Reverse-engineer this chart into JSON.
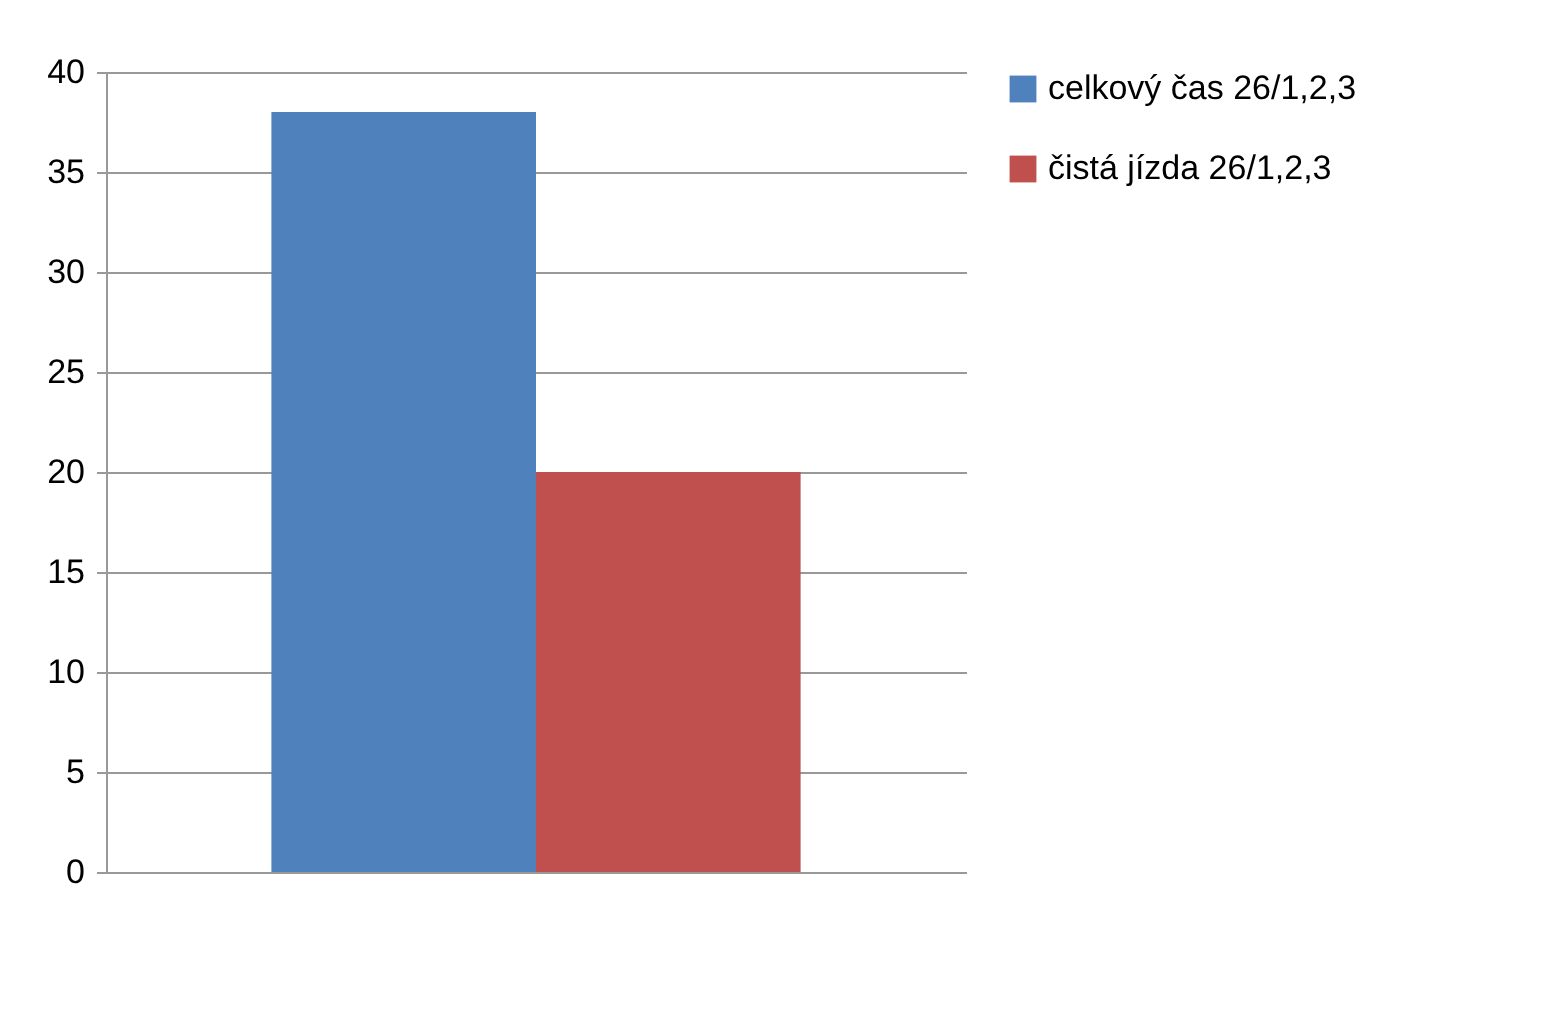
{
  "chart_data": {
    "type": "bar",
    "categories": [
      null
    ],
    "series": [
      {
        "name": "celkový čas 26/1,2,3",
        "color": "#4f81bd",
        "values": [
          38
        ]
      },
      {
        "name": "čistá jízda 26/1,2,3",
        "color": "#c0504d",
        "values": [
          20
        ]
      }
    ],
    "ylim": [
      0,
      40
    ],
    "yticks": [
      0,
      5,
      10,
      15,
      20,
      25,
      30,
      35,
      40
    ],
    "grid": "y",
    "legend": "right"
  }
}
